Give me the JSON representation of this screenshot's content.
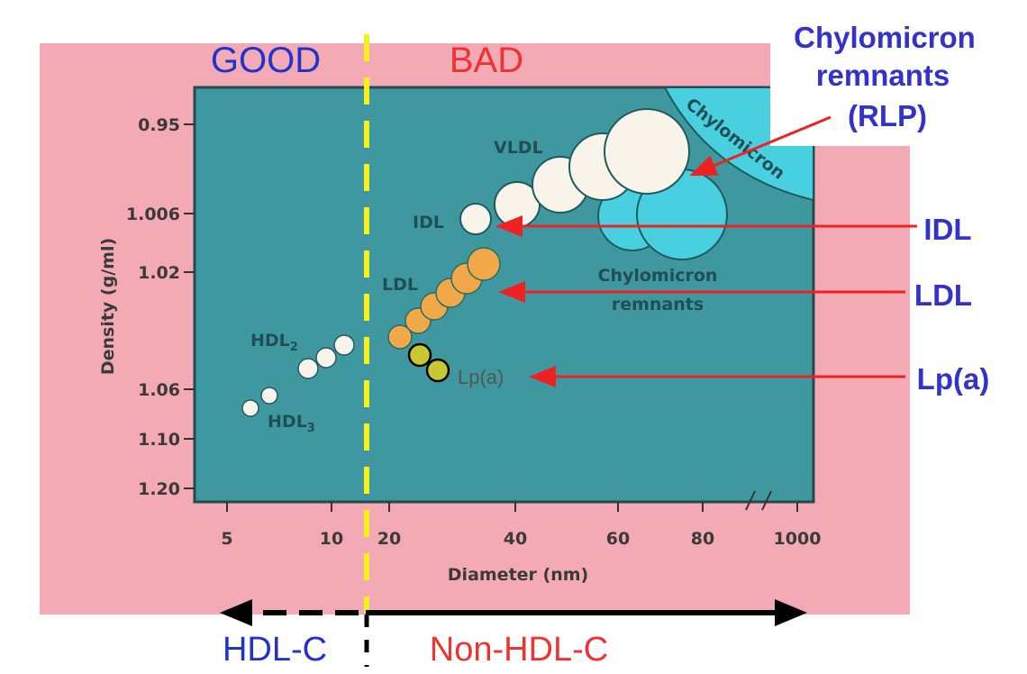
{
  "header": {
    "good_label": "GOOD",
    "bad_label": "BAD"
  },
  "axes": {
    "ylabel": "Density (g/ml)",
    "xlabel": "Diameter (nm)",
    "y_ticks": [
      "0.95",
      "1.006",
      "1.02",
      "1.06",
      "1.10",
      "1.20"
    ],
    "x_ticks": [
      "5",
      "10",
      "20",
      "40",
      "60",
      "80",
      "1000"
    ]
  },
  "particles": {
    "hdl2": "HDL",
    "hdl2_sub": "2",
    "hdl3": "HDL",
    "hdl3_sub": "3",
    "ldl": "LDL",
    "idl": "IDL",
    "vldl": "VLDL",
    "lpa": "Lp(a)",
    "chylomicron": "Chylomicron",
    "remnants_line1": "Chylomicron",
    "remnants_line2": "remnants"
  },
  "callouts": {
    "rlp_line1": "Chylomicron",
    "rlp_line2": "remnants",
    "rlp_line3": "(RLP)",
    "idl": "IDL",
    "ldl": "LDL",
    "lpa": "Lp(a)"
  },
  "footer": {
    "hdl_c": "HDL-C",
    "non_hdl_c": "Non-HDL-C"
  },
  "colors": {
    "background": "#f4aab4",
    "panel": "#3f98a0",
    "good": "#2233cc",
    "bad": "#ee3333",
    "callout": "#3333cc",
    "arrow": "#ee2222",
    "divider": "#f5f020",
    "ldl": "#f0a848",
    "lpa": "#c8c832",
    "hdl_vldl": "#f8f4ea",
    "chylomicron": "#48d0e0"
  }
}
